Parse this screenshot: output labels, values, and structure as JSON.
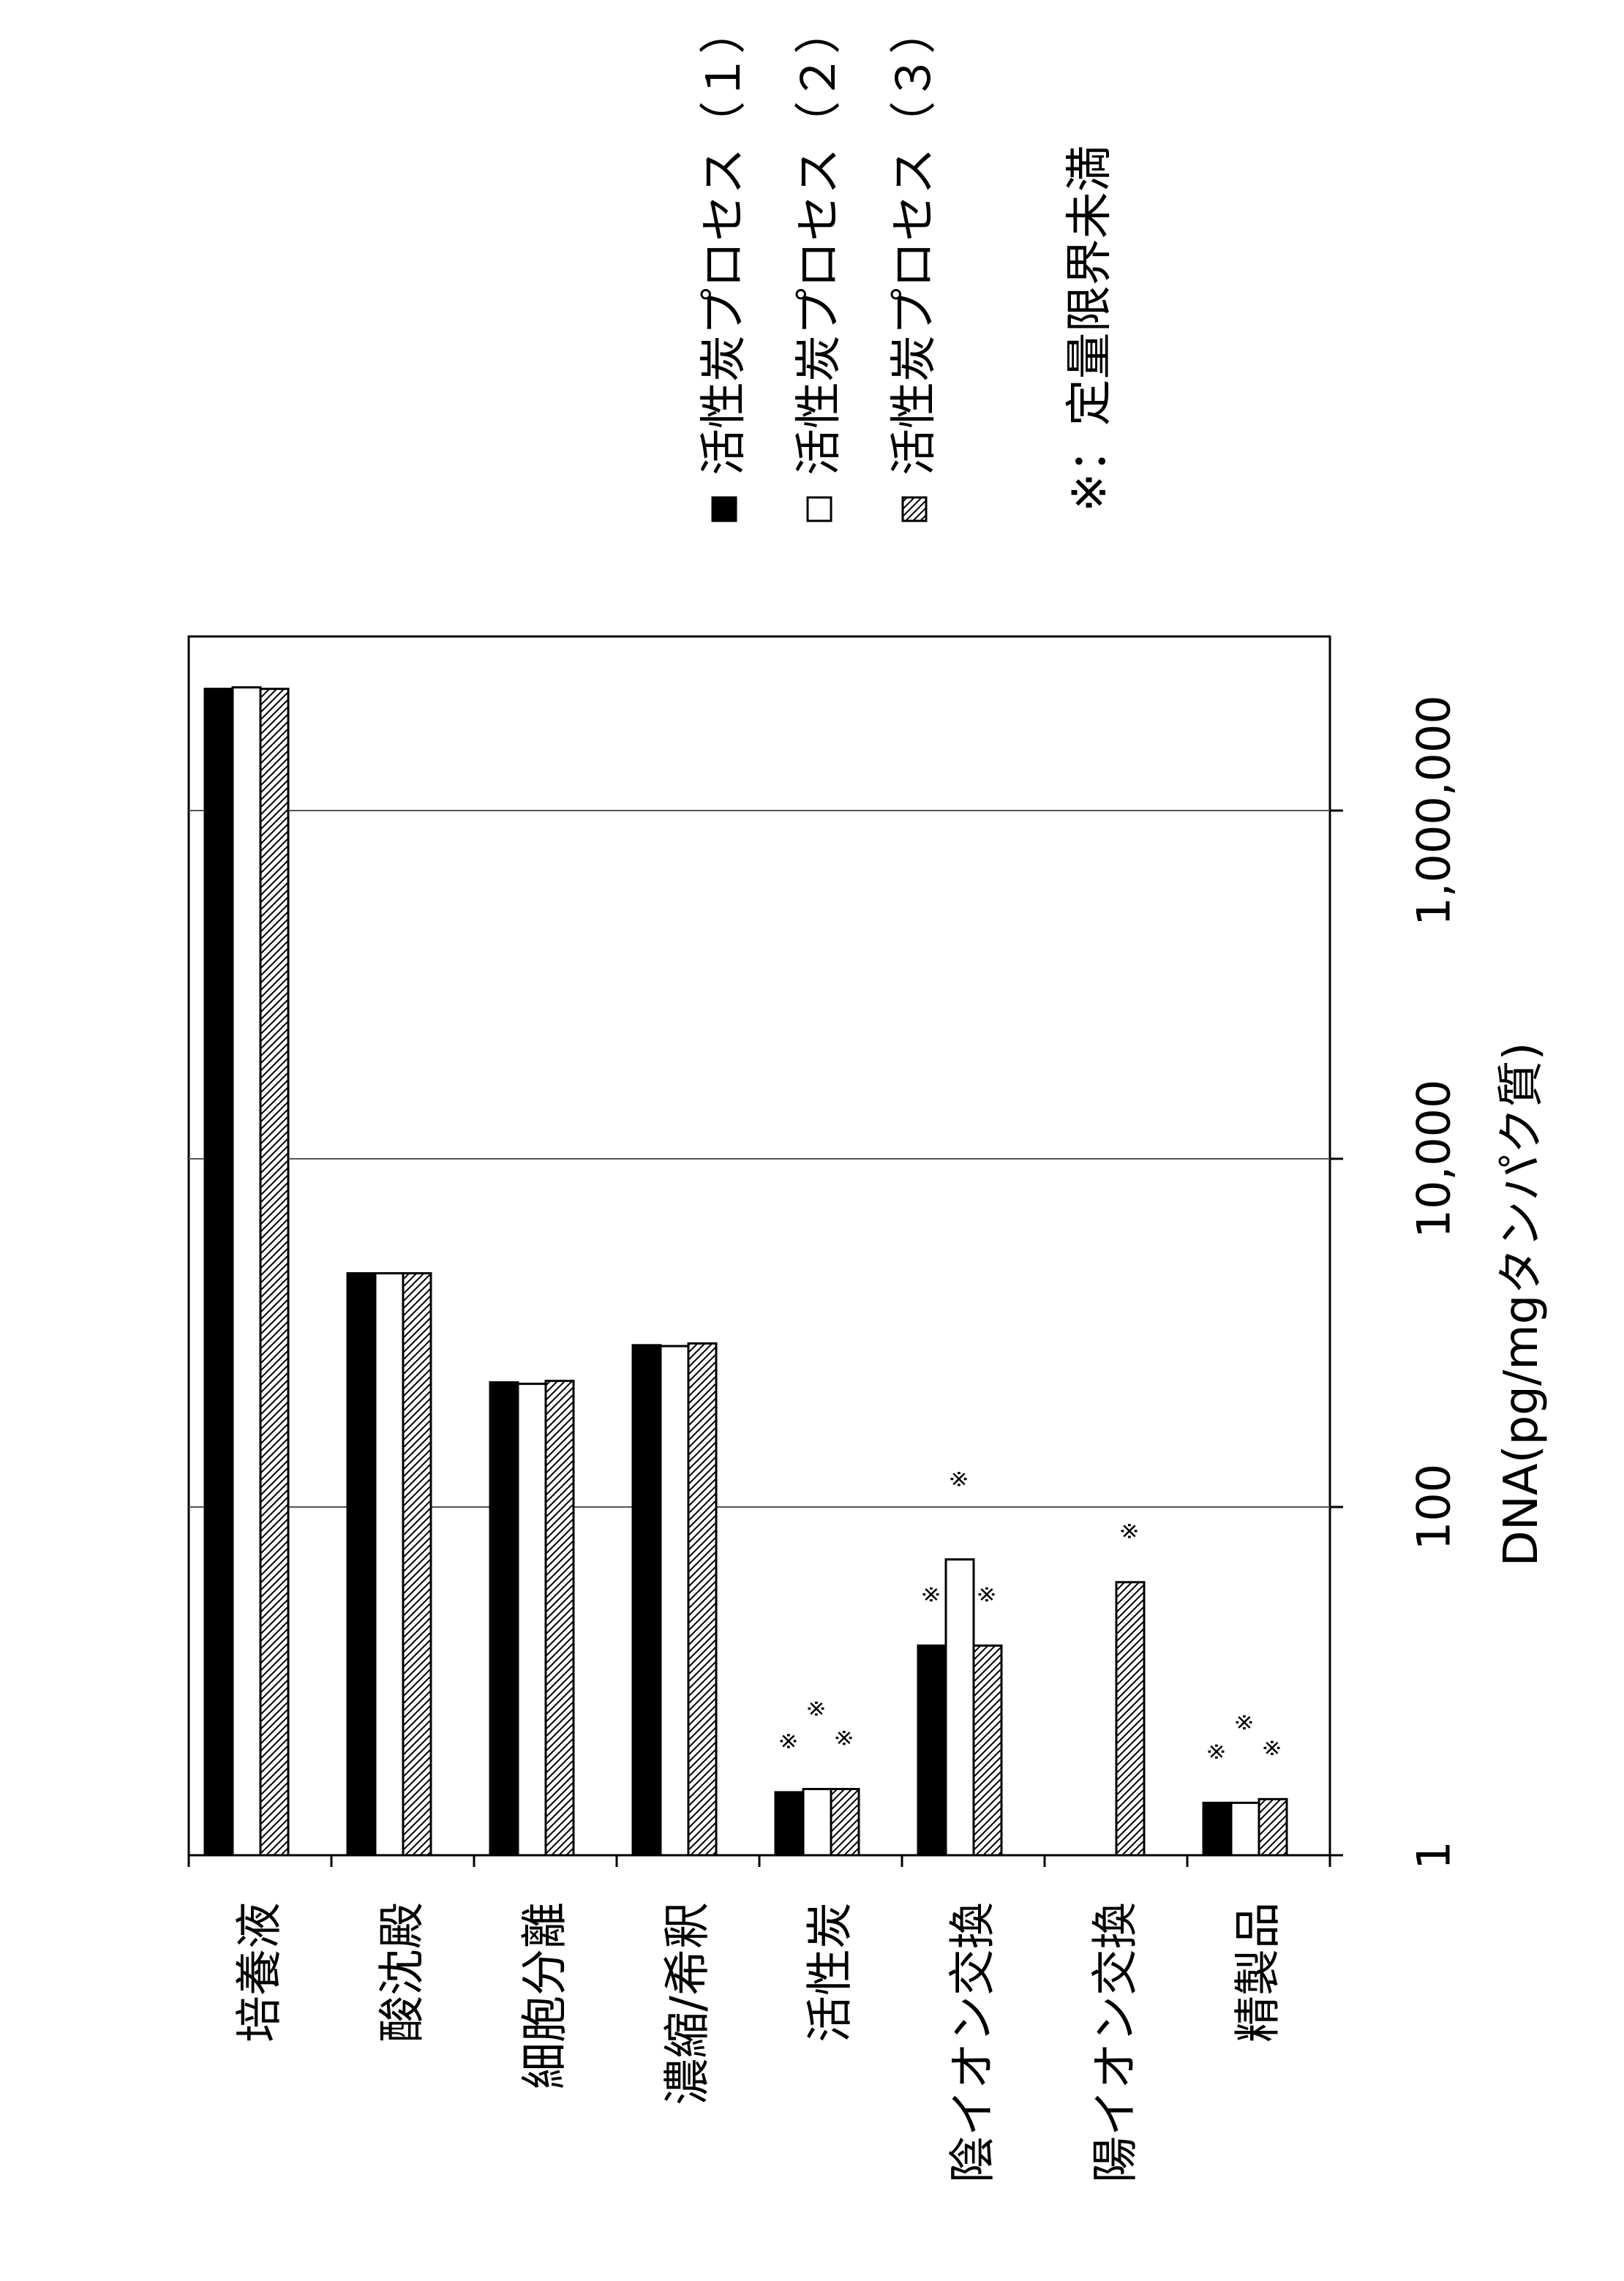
{
  "chart_data": {
    "type": "bar",
    "orientation": "horizontal",
    "x_scale": "log",
    "xlim": [
      1,
      10000000
    ],
    "xlabel": "DNA(pg/mgタンパク質)",
    "ticks": [
      {
        "value": 1,
        "label": "1"
      },
      {
        "value": 100,
        "label": "100"
      },
      {
        "value": 10000,
        "label": "10,000"
      },
      {
        "value": 1000000,
        "label": "1,000,000"
      }
    ],
    "categories": [
      "培養液",
      "酸沈殿",
      "細胞分離",
      "濃縮/希釈",
      "活性炭",
      "陰イオン交換",
      "陽イオン交換",
      "精製品"
    ],
    "series": [
      {
        "name": "活性炭プロセス（１）",
        "fill": "solid",
        "color": "#000000",
        "values": [
          5000000,
          2200,
          520,
          850,
          2.3,
          16,
          null,
          2.0
        ],
        "below_limit": [
          false,
          false,
          false,
          false,
          true,
          true,
          false,
          true
        ]
      },
      {
        "name": "活性炭プロセス（２）",
        "fill": "open",
        "color": "#ffffff",
        "values": [
          5100000,
          2200,
          510,
          840,
          2.4,
          50,
          null,
          2.0
        ],
        "below_limit": [
          false,
          false,
          false,
          false,
          true,
          true,
          false,
          true
        ]
      },
      {
        "name": "活性炭プロセス（３）",
        "fill": "hatched",
        "color": "#ffffff",
        "values": [
          5000000,
          2200,
          530,
          870,
          2.4,
          16,
          37,
          2.1
        ],
        "below_limit": [
          false,
          false,
          false,
          false,
          true,
          true,
          true,
          true
        ]
      }
    ],
    "marker_symbol": "※",
    "footnote": "※：定量限界未満",
    "legend_position": "top-right",
    "grid": "major-x"
  }
}
